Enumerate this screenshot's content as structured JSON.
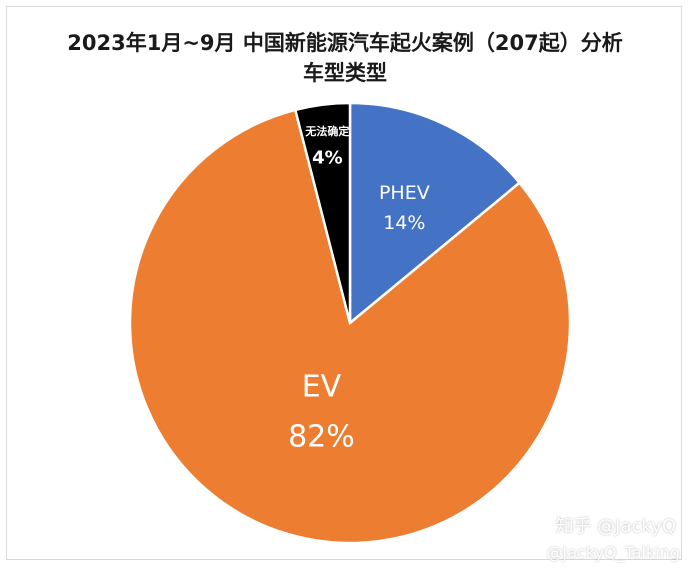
{
  "chart_data": {
    "type": "pie",
    "title": "2023年1月~9月  中国新能源汽车起火案例（207起）分析",
    "subtitle": "车型类型",
    "slices": [
      {
        "label": "PHEV",
        "value": 14,
        "value_label": "14%",
        "color": "#4472c4"
      },
      {
        "label": "EV",
        "value": 82,
        "value_label": "82%",
        "color": "#ed7d31"
      },
      {
        "label": "无法确定",
        "value": 4,
        "value_label": "4%",
        "color": "#000000"
      }
    ],
    "legend": "none"
  },
  "watermark": {
    "line1": "知乎 @JackyQ",
    "line2": "@JackyQ_Talking"
  }
}
